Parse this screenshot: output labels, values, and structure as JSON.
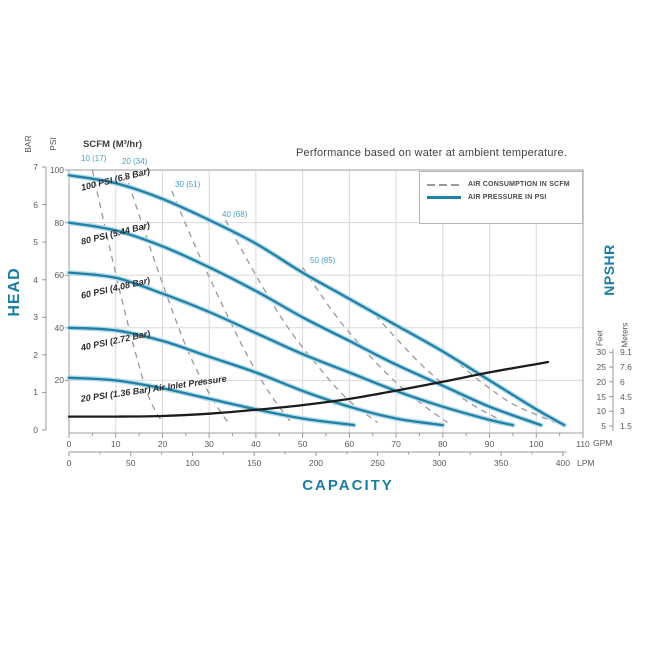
{
  "title": "Performance based on water at ambient temperature.",
  "legend": [
    {
      "label": "AIR CONSUMPTION IN SCFM",
      "style": "dashed",
      "color": "#999999"
    },
    {
      "label": "AIR PRESSURE IN PSI",
      "style": "solid",
      "color": "#2180a5"
    }
  ],
  "colors": {
    "curve_blue": "#2180a5",
    "curve_blue_halo": "#b5dbe8",
    "dashed_gray": "#999999",
    "npshr_black": "#1c1c1c",
    "grid": "#d8d8d8",
    "border": "#adadad",
    "title_blue": "#1b7ca4"
  },
  "chart_data": {
    "type": "line",
    "title": "Performance based on water at ambient temperature.",
    "x_axis": {
      "label": "CAPACITY",
      "primary_units": "GPM",
      "primary_ticks": [
        0,
        10,
        20,
        30,
        40,
        50,
        60,
        70,
        80,
        90,
        100,
        110
      ],
      "secondary_units": "LPM",
      "secondary_ticks": [
        0,
        50,
        100,
        150,
        200,
        250,
        300,
        350,
        400
      ],
      "gpm_range": [
        0,
        110
      ]
    },
    "y_axis_left": {
      "label": "HEAD",
      "units": [
        "BAR",
        "PSI"
      ],
      "bar_ticks": [
        7,
        6,
        5,
        4,
        3,
        2,
        1,
        0
      ],
      "psi_ticks": [
        100,
        80,
        60,
        40,
        20
      ],
      "psi_range": [
        0,
        100
      ],
      "bar_range": [
        0,
        7
      ]
    },
    "y_axis_right": {
      "label": "NPSHR",
      "feet_header": "Feet",
      "meters_header": "Meters",
      "feet_ticks": [
        30,
        25,
        20,
        15,
        10,
        5
      ],
      "meters_ticks": [
        "9.1",
        "7.6",
        "6",
        "4.5",
        "3",
        "1.5"
      ]
    },
    "pressure_curves": [
      {
        "label": "100 PSI (6.8 Bar)",
        "points_gpm_psi": [
          [
            0,
            98
          ],
          [
            10,
            95
          ],
          [
            20,
            89
          ],
          [
            30,
            81
          ],
          [
            40,
            72
          ],
          [
            50,
            61
          ],
          [
            60,
            51
          ],
          [
            70,
            41
          ],
          [
            80,
            31
          ],
          [
            90,
            20
          ],
          [
            100,
            9
          ],
          [
            106,
            3
          ]
        ]
      },
      {
        "label": "80 PSI (5.44 Bar)",
        "points_gpm_psi": [
          [
            0,
            80
          ],
          [
            10,
            77
          ],
          [
            20,
            71
          ],
          [
            30,
            63
          ],
          [
            40,
            54
          ],
          [
            50,
            44
          ],
          [
            60,
            35
          ],
          [
            70,
            26
          ],
          [
            80,
            18
          ],
          [
            90,
            10
          ],
          [
            101,
            3
          ]
        ]
      },
      {
        "label": "60 PSI (4.08 Bar)",
        "points_gpm_psi": [
          [
            0,
            61
          ],
          [
            10,
            59
          ],
          [
            20,
            53
          ],
          [
            30,
            46
          ],
          [
            40,
            38
          ],
          [
            50,
            30
          ],
          [
            60,
            23
          ],
          [
            70,
            16
          ],
          [
            80,
            10
          ],
          [
            90,
            5
          ],
          [
            95,
            3
          ]
        ]
      },
      {
        "label": "40 PSI (2.72 Bar)",
        "points_gpm_psi": [
          [
            0,
            40
          ],
          [
            10,
            39
          ],
          [
            20,
            35
          ],
          [
            30,
            29
          ],
          [
            40,
            23
          ],
          [
            50,
            16
          ],
          [
            60,
            10
          ],
          [
            70,
            5.5
          ],
          [
            80,
            3
          ]
        ]
      },
      {
        "label": "20 PSI (1.36 Bar) Air Inlet Pressure",
        "points_gpm_psi": [
          [
            0,
            21
          ],
          [
            10,
            20
          ],
          [
            20,
            17
          ],
          [
            30,
            13
          ],
          [
            40,
            9
          ],
          [
            50,
            5.5
          ],
          [
            61,
            3
          ]
        ]
      }
    ],
    "air_consumption": {
      "header": "SCFM (M³/hr)",
      "curves": [
        {
          "label": "10 (17)",
          "points_gpm_psi": [
            [
              5,
              100
            ],
            [
              8,
              76
            ],
            [
              11,
              53
            ],
            [
              14,
              32
            ],
            [
              17,
              14
            ],
            [
              20,
              4
            ]
          ]
        },
        {
          "label": "20 (34)",
          "points_gpm_psi": [
            [
              12,
              99
            ],
            [
              16.5,
              75
            ],
            [
              21,
              52
            ],
            [
              25.5,
              31
            ],
            [
              30,
              15
            ],
            [
              34,
              4
            ]
          ]
        },
        {
          "label": "30 (51)",
          "points_gpm_psi": [
            [
              22,
              92
            ],
            [
              27.5,
              69
            ],
            [
              33,
              48
            ],
            [
              38,
              30
            ],
            [
              43,
              15
            ],
            [
              47.5,
              4
            ]
          ]
        },
        {
          "label": "40 (68)",
          "points_gpm_psi": [
            [
              33.5,
              81
            ],
            [
              40,
              60
            ],
            [
              46.5,
              41
            ],
            [
              53,
              26
            ],
            [
              59.5,
              13
            ],
            [
              66,
              4
            ]
          ]
        },
        {
          "label": "50 (85)",
          "points_gpm_psi": [
            [
              50,
              63
            ],
            [
              56.5,
              46
            ],
            [
              63,
              32
            ],
            [
              69.5,
              20
            ],
            [
              75.5,
              11
            ],
            [
              81,
              4
            ]
          ]
        },
        {
          "label": "",
          "points_gpm_psi": [
            [
              64,
              48
            ],
            [
              70,
              36
            ],
            [
              76,
              25
            ],
            [
              82,
              16
            ],
            [
              88,
              9
            ],
            [
              93.5,
              4
            ]
          ]
        },
        {
          "label": "",
          "points_gpm_psi": [
            [
              80,
              32
            ],
            [
              85,
              24
            ],
            [
              90,
              17
            ],
            [
              95,
              11
            ],
            [
              100,
              7
            ],
            [
              104,
              4
            ]
          ]
        }
      ]
    },
    "npshr_curve": {
      "name": "NPSHR",
      "points_gpm_feet": [
        [
          0,
          8.2
        ],
        [
          10,
          8.2
        ],
        [
          20,
          8.4
        ],
        [
          30,
          9.2
        ],
        [
          40,
          10.5
        ],
        [
          50,
          12.1
        ],
        [
          60,
          14.2
        ],
        [
          70,
          17
        ],
        [
          80,
          20
        ],
        [
          90,
          23.2
        ],
        [
          100,
          26
        ],
        [
          102.5,
          26.7
        ]
      ]
    }
  }
}
